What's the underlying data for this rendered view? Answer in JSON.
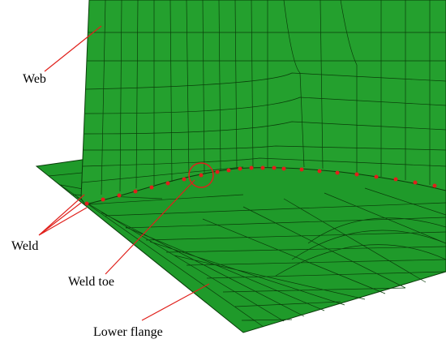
{
  "labels": {
    "web": "Web",
    "weld": "Weld",
    "weld_toe": "Weld toe",
    "lower_flange": "Lower flange"
  }
}
